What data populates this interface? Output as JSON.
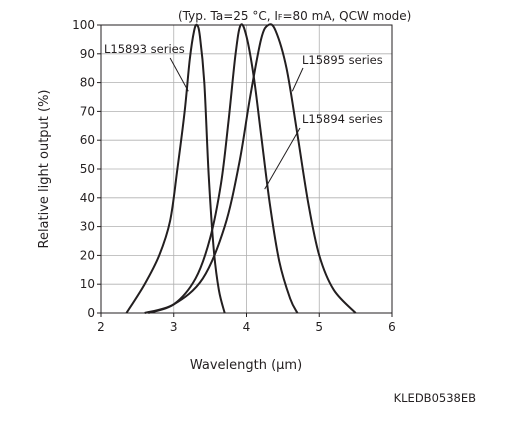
{
  "chart_data": {
    "type": "line",
    "condition": "(Typ. Ta=25 °C, I",
    "condition_sub": "F",
    "condition_tail": "=80 mA, QCW mode)",
    "xlabel": "Wavelength (μm)",
    "ylabel": "Relative light output (%)",
    "xlim": [
      2,
      6
    ],
    "ylim": [
      0,
      100
    ],
    "xticks": [
      "2",
      "3",
      "4",
      "5",
      "6"
    ],
    "yticks": [
      "0",
      "10",
      "20",
      "30",
      "40",
      "50",
      "60",
      "70",
      "80",
      "90",
      "100"
    ],
    "grid": true,
    "code": "KLEDB0538EB",
    "series": [
      {
        "name": "L15893 series",
        "x": [
          2.35,
          2.6,
          2.8,
          2.95,
          3.05,
          3.15,
          3.22,
          3.28,
          3.32,
          3.36,
          3.42,
          3.48,
          3.55,
          3.62,
          3.7
        ],
        "y": [
          0,
          10,
          20,
          32,
          50,
          70,
          88,
          98,
          100,
          96,
          80,
          48,
          22,
          8,
          0
        ]
      },
      {
        "name": "L15895 series",
        "x": [
          2.65,
          3.0,
          3.3,
          3.5,
          3.65,
          3.75,
          3.85,
          3.92,
          4.0,
          4.1,
          4.2,
          4.32,
          4.45,
          4.6,
          4.7
        ],
        "y": [
          0,
          3,
          12,
          26,
          45,
          66,
          90,
          100,
          96,
          82,
          62,
          38,
          18,
          5,
          0
        ]
      },
      {
        "name": "L15894 series",
        "x": [
          2.6,
          3.0,
          3.4,
          3.7,
          3.9,
          4.05,
          4.2,
          4.3,
          4.4,
          4.55,
          4.7,
          4.85,
          5.0,
          5.2,
          5.5
        ],
        "y": [
          0,
          3,
          12,
          30,
          52,
          75,
          95,
          100,
          98,
          85,
          62,
          38,
          20,
          8,
          0
        ]
      }
    ]
  }
}
